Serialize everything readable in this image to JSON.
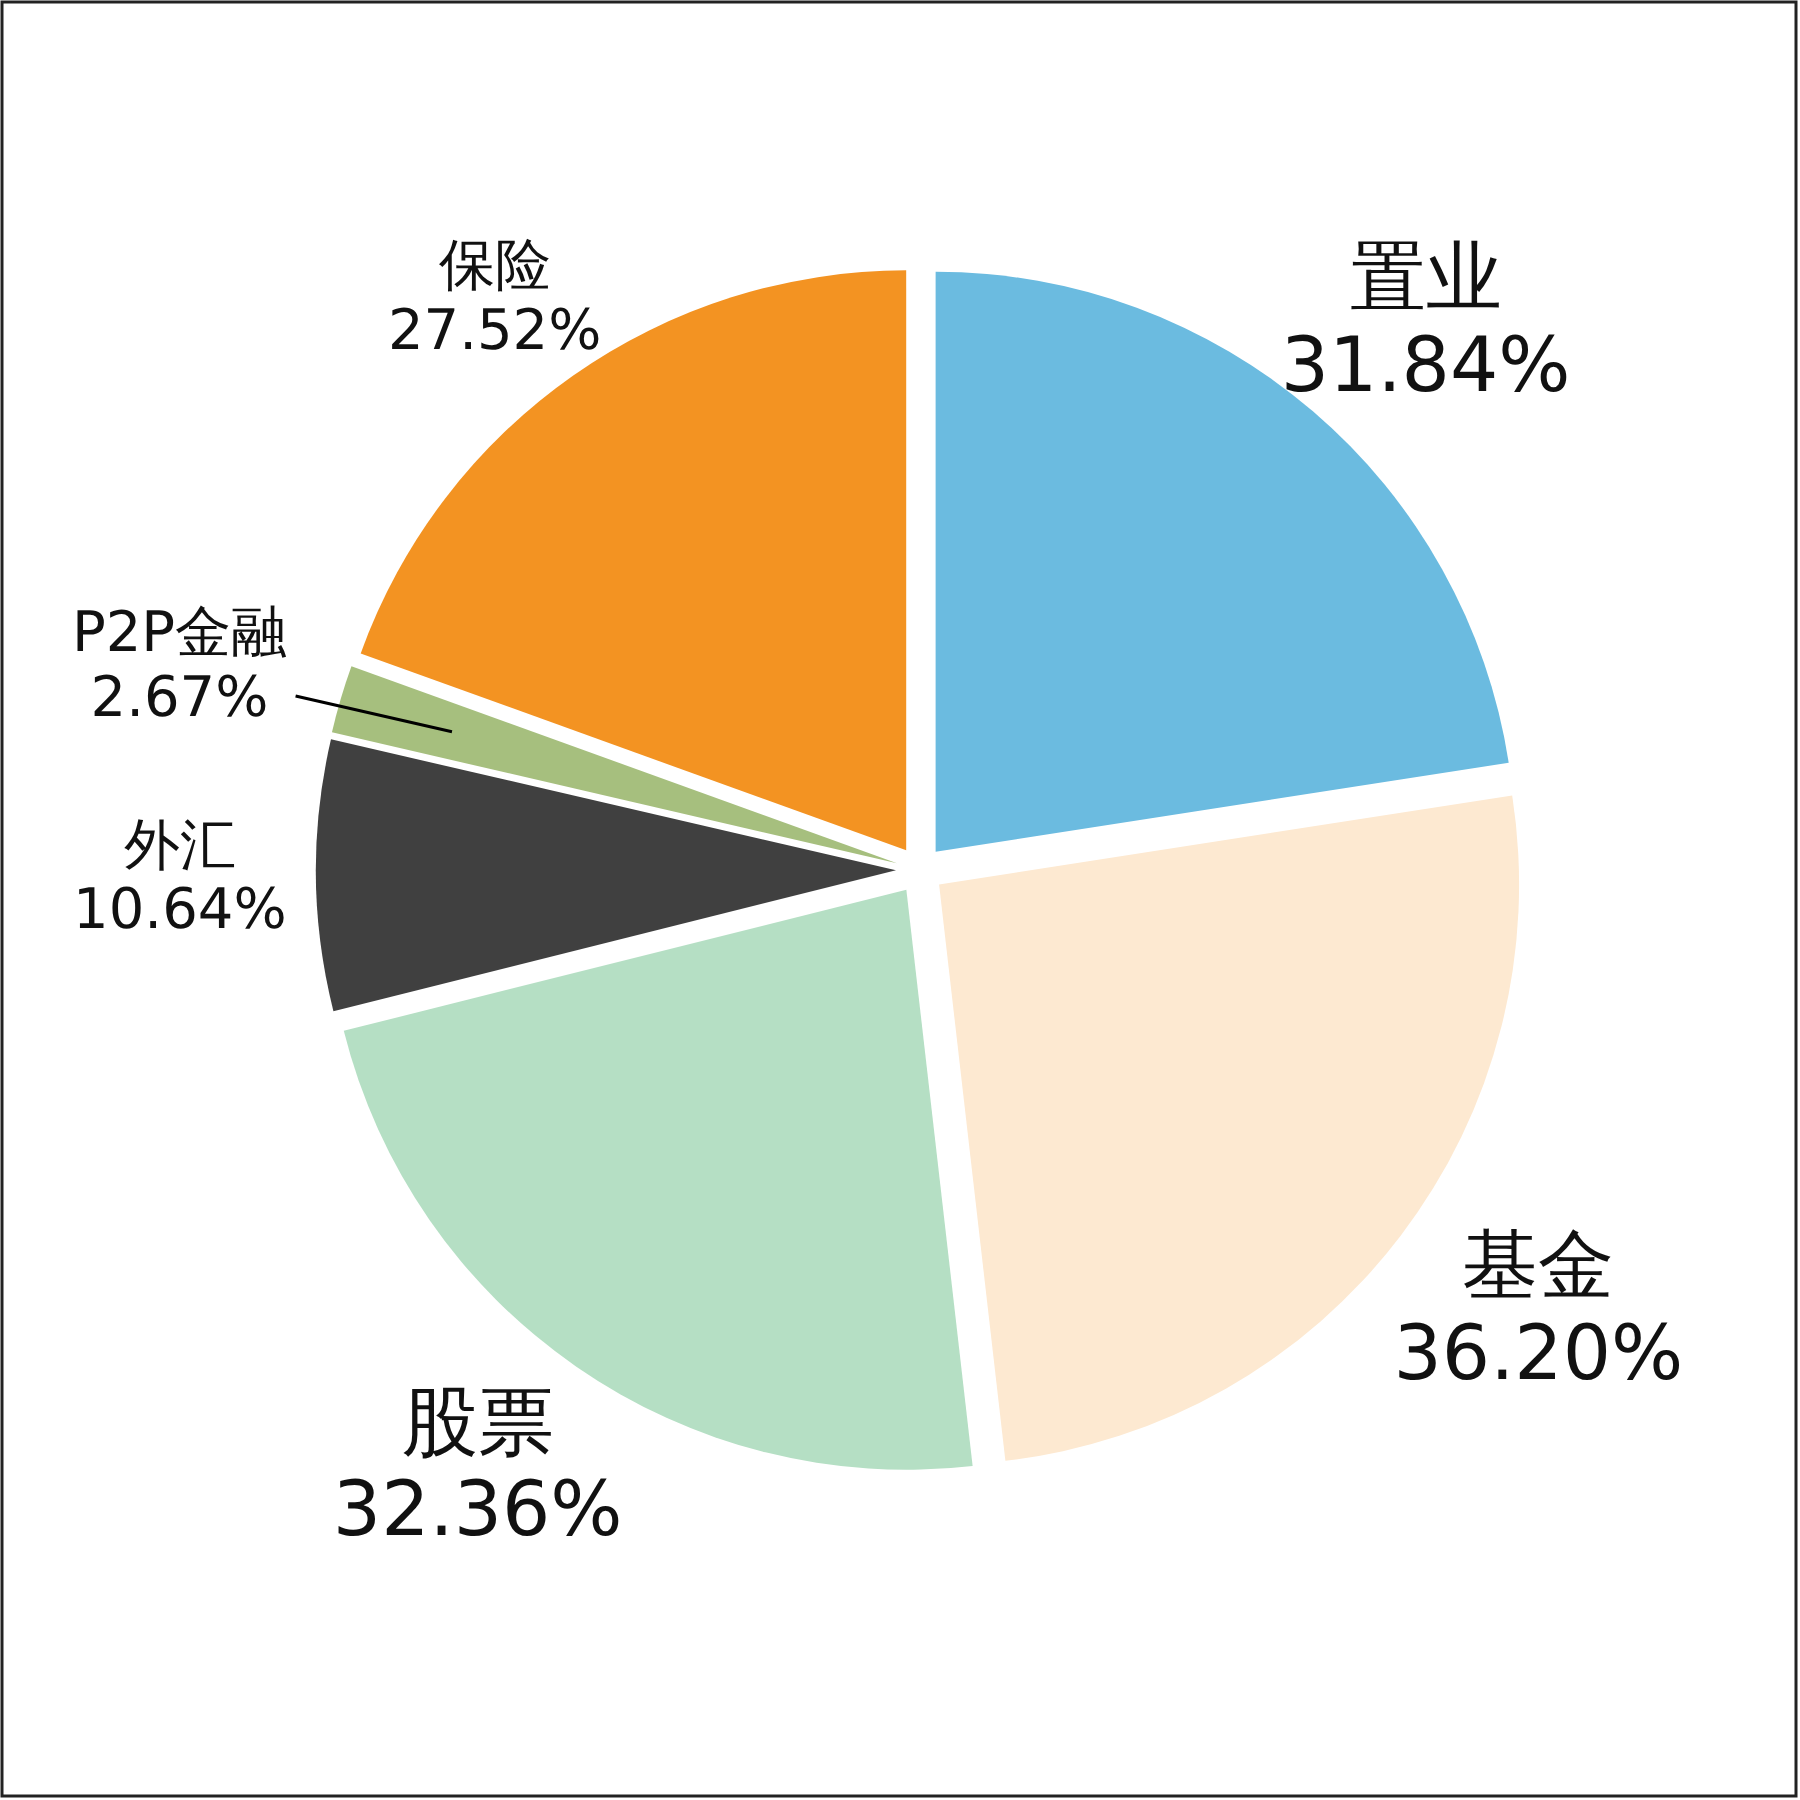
{
  "chart_data": {
    "type": "pie",
    "categories": [
      "置业",
      "基金",
      "股票",
      "外汇",
      "P2P金融",
      "保险"
    ],
    "values": [
      31.84,
      36.2,
      32.36,
      10.64,
      2.67,
      27.52
    ],
    "colors": [
      "#6bbbe0",
      "#fde9d1",
      "#b5dfc4",
      "#404040",
      "#a6bf7e",
      "#f39322"
    ],
    "value_labels": [
      "31.84%",
      "36.20%",
      "32.36%",
      "10.64%",
      "2.67%",
      "27.52%"
    ]
  }
}
